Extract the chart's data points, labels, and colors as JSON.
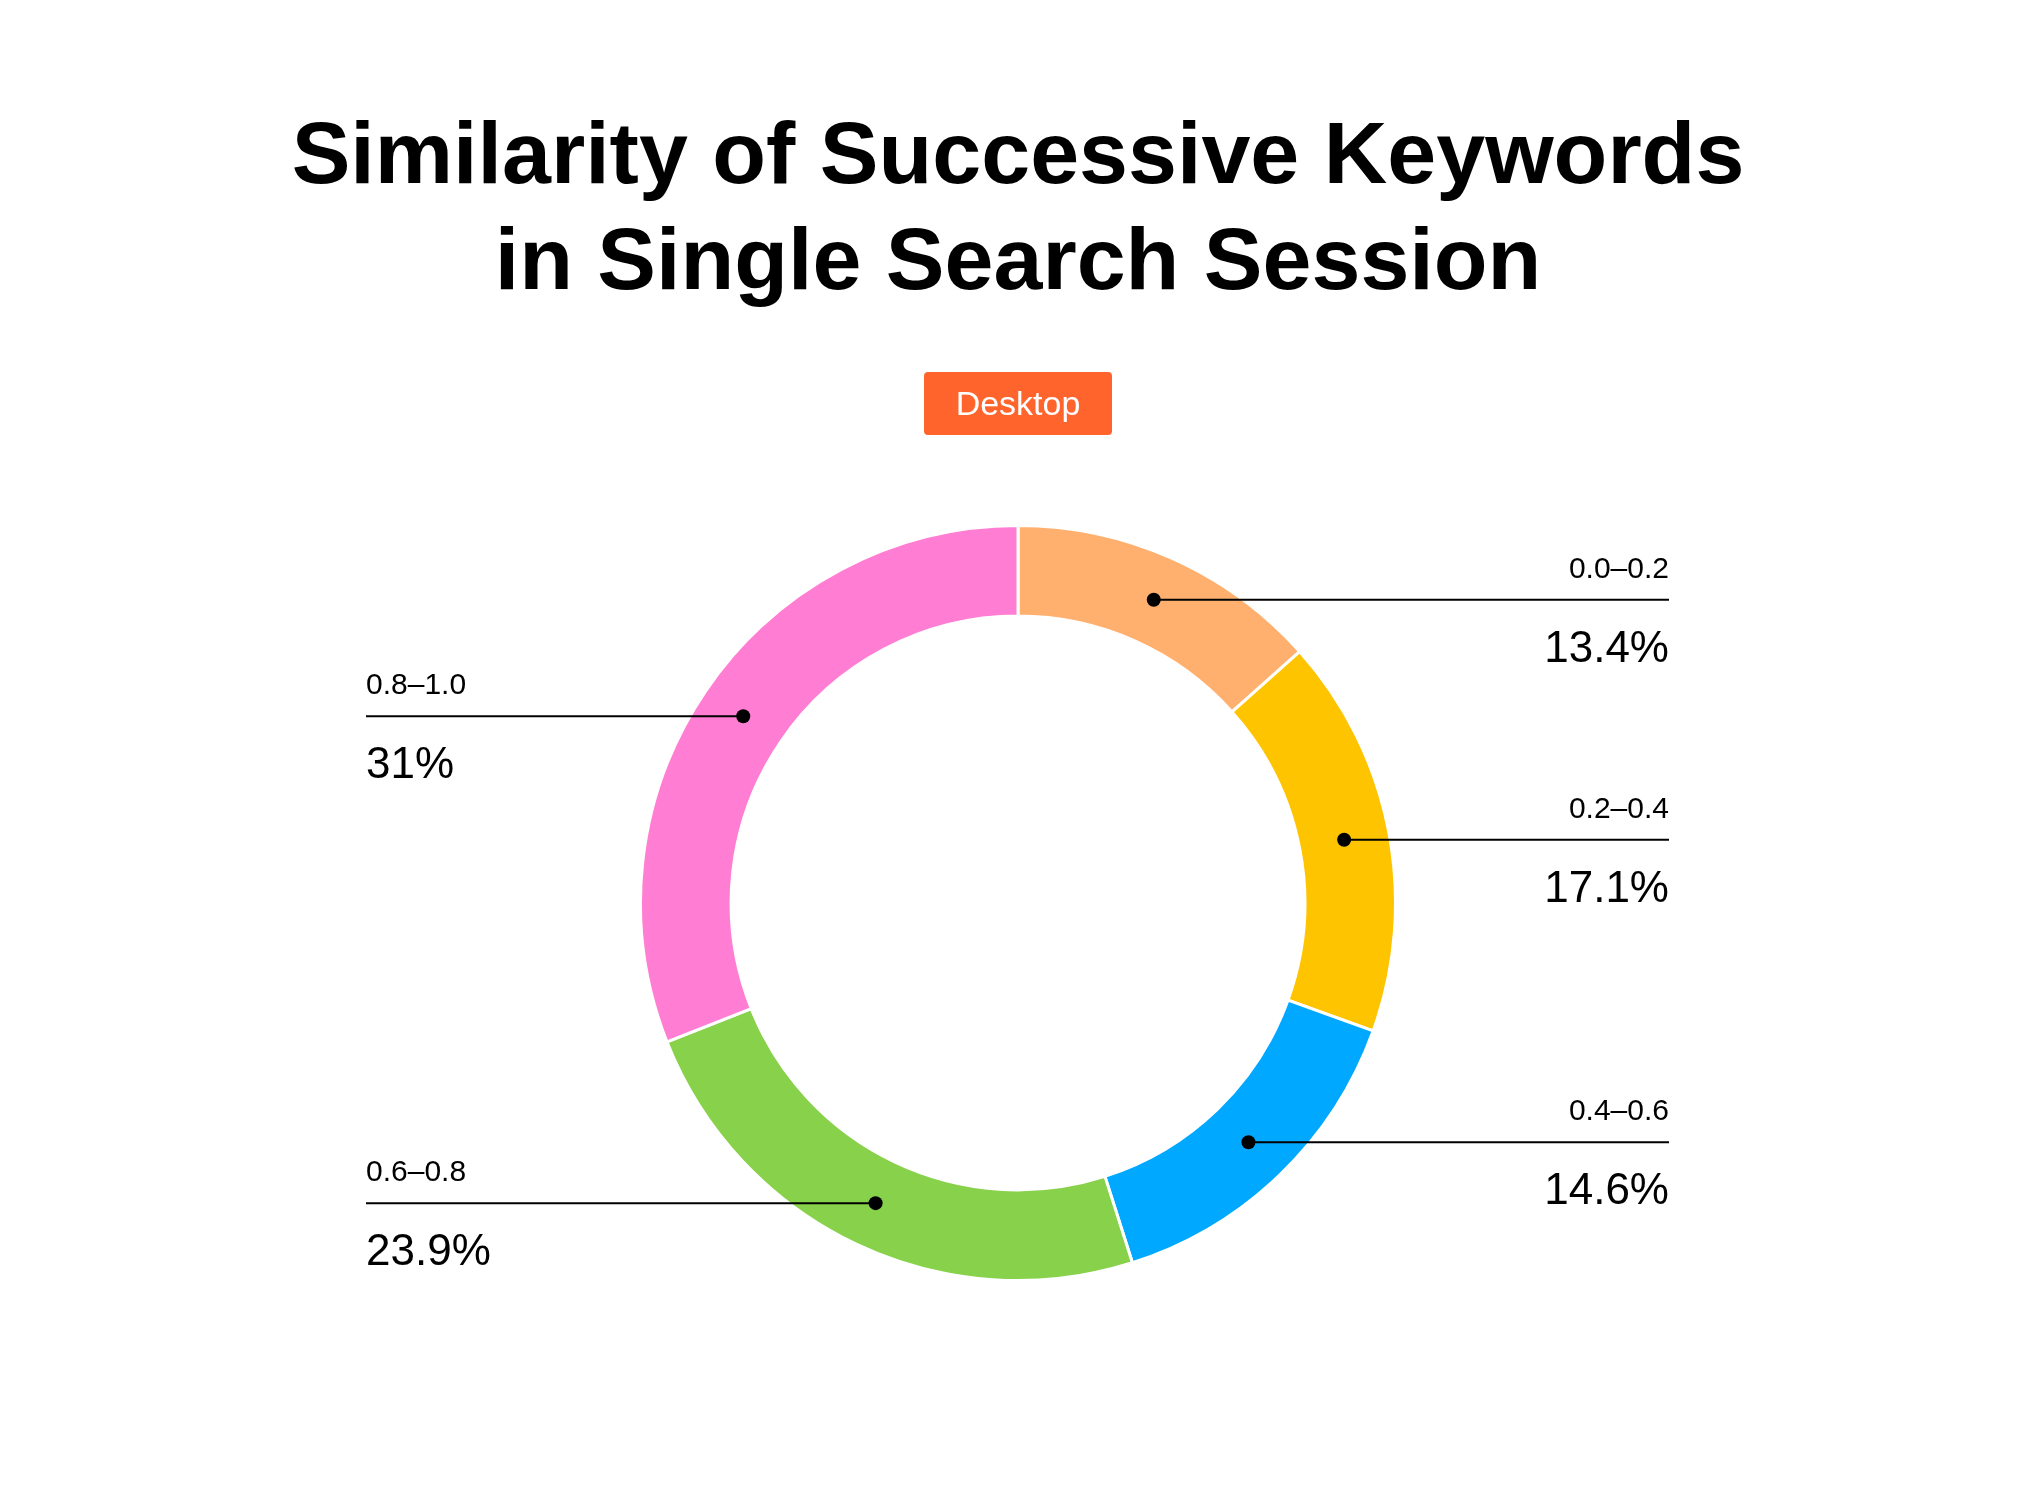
{
  "chart_data": {
    "type": "donut",
    "title": "Similarity of Successive Keywords\nin Single Search Session",
    "subtitle": "Desktop",
    "categories": [
      "0.0–0.2",
      "0.2–0.4",
      "0.4–0.6",
      "0.6–0.8",
      "0.8–1.0"
    ],
    "values": [
      13.4,
      17.1,
      14.6,
      23.9,
      31
    ],
    "value_labels": [
      "13.4%",
      "17.1%",
      "14.6%",
      "23.9%",
      "31%"
    ],
    "colors": [
      "#ffb06e",
      "#ffc400",
      "#00a8ff",
      "#88d14b",
      "#ff7ed3"
    ],
    "legend": false
  }
}
